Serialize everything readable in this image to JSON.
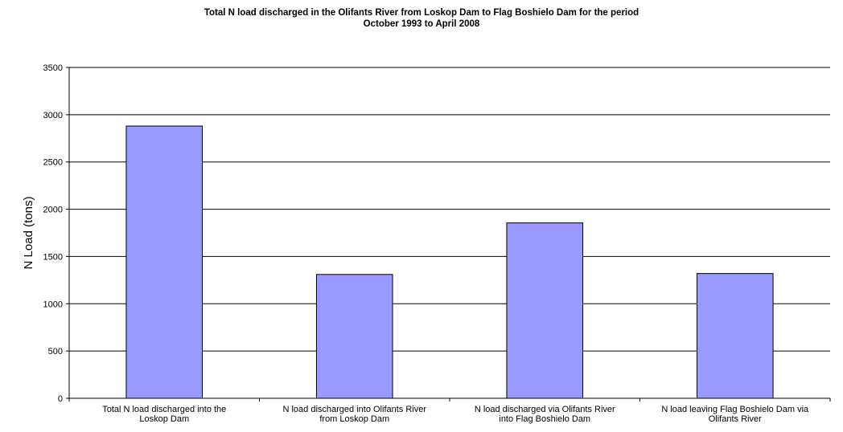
{
  "chart_data": {
    "type": "bar",
    "title": [
      "Total N load discharged in the Olifants River from Loskop Dam to Flag Boshielo Dam for the period",
      "October 1993 to April 2008"
    ],
    "xlabel": "",
    "ylabel": "N  Load (tons)",
    "ylim": [
      0,
      3500
    ],
    "yticks": [
      0,
      500,
      1000,
      1500,
      2000,
      2500,
      3000,
      3500
    ],
    "grid": true,
    "categories": [
      [
        "Total N load discharged into the",
        "Loskop Dam"
      ],
      [
        "N load discharged into Olifants River",
        "from Loskop Dam"
      ],
      [
        "N load discharged via Olifants River",
        "into Flag Boshielo Dam"
      ],
      [
        "N load leaving Flag Boshielo Dam via",
        "Olifants River"
      ]
    ],
    "values": [
      2880,
      1310,
      1855,
      1320
    ],
    "colors": {
      "bar": "#9999ff",
      "bar_stroke": "#000000",
      "grid": "#000000"
    }
  }
}
